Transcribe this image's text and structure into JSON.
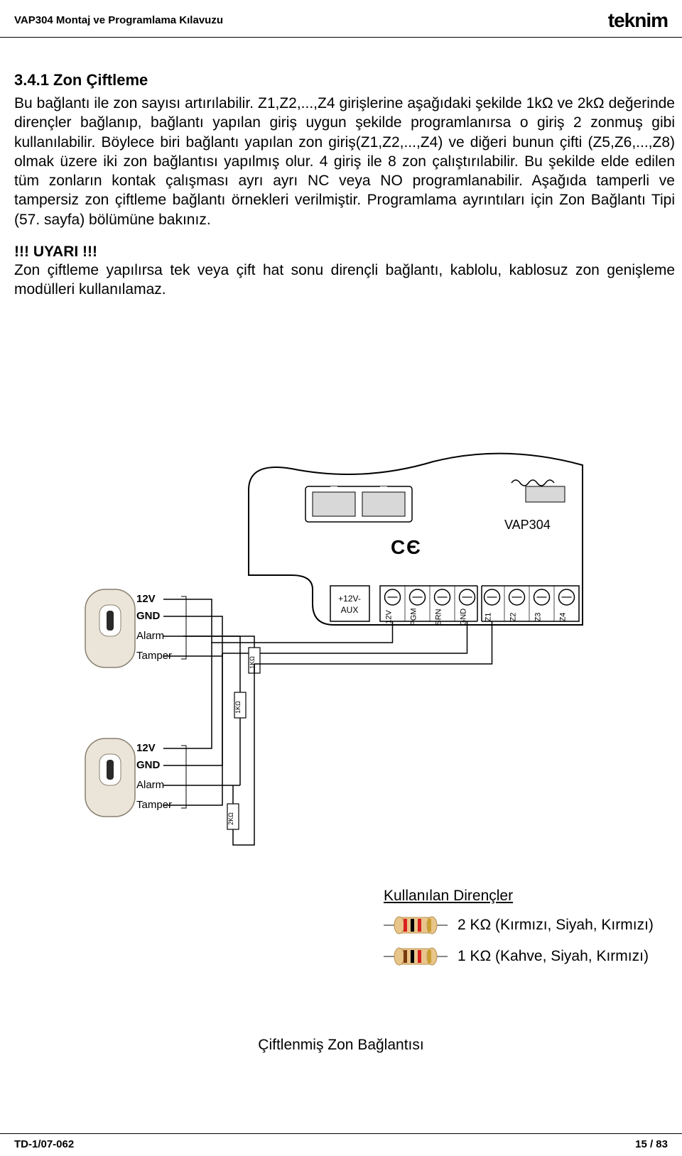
{
  "header": {
    "doc_title": "VAP304 Montaj ve Programlama Kılavuzu",
    "brand": "teknim"
  },
  "section": {
    "title": "3.4.1 Zon Çiftleme",
    "body": "Bu bağlantı ile zon sayısı artırılabilir. Z1,Z2,...,Z4 girişlerine aşağıdaki şekilde 1kΩ ve 2kΩ değerinde dirençler bağlanıp, bağlantı yapılan giriş uygun şekilde programlanırsa o giriş 2 zonmuş gibi kullanılabilir. Böylece biri bağlantı yapılan zon giriş(Z1,Z2,...,Z4) ve diğeri bunun çifti (Z5,Z6,...,Z8) olmak üzere iki zon bağlantısı yapılmış olur. 4 giriş ile 8 zon çalıştırılabilir. Bu şekilde elde edilen tüm zonların kontak çalışması ayrı ayrı NC veya NO programlanabilir. Aşağıda tamperli ve tampersiz zon çiftleme bağlantı örnekleri verilmiştir. Programlama ayrıntıları için Zon Bağlantı Tipi (57. sayfa) bölümüne bakınız.",
    "warning_title": "!!! UYARI !!!",
    "warning_body": "Zon çiftleme yapılırsa tek veya çift hat sonu dirençli bağlantı, kablolu, kablosuz zon genişleme modülleri kullanılamaz."
  },
  "diagram": {
    "board_label": "VAP304",
    "aux_label": "+12V-\nAUX",
    "terminals": [
      "12V",
      "PGM",
      "SRN",
      "GND",
      "Z1",
      "Z2",
      "Z3",
      "Z4"
    ],
    "sensor_labels": [
      "12V",
      "GND",
      "Alarm",
      "Tamper"
    ],
    "resistor_inline": [
      "1KΩ",
      "1KΩ",
      "2KΩ"
    ],
    "colors": {
      "board_outline": "#000000",
      "board_fill": "#ffffff",
      "sensor_fill": "#ebe5d9",
      "sensor_stroke": "#888070",
      "connector_fill": "#e8e8e8",
      "wire": "#000000",
      "screw_fill": "#ffffff",
      "screw_stroke": "#000000",
      "gap_fill": "#d8d8d8"
    }
  },
  "resistors": {
    "title": "Kullanılan Dirençler",
    "items": [
      {
        "label": "2 KΩ (Kırmızı, Siyah, Kırmızı)",
        "bands": [
          "#d82020",
          "#000000",
          "#d82020",
          "#c9a030"
        ],
        "body": "#e8c58a"
      },
      {
        "label": "1 KΩ (Kahve, Siyah, Kırmızı)",
        "bands": [
          "#7a3a10",
          "#000000",
          "#d82020",
          "#c9a030"
        ],
        "body": "#e8c58a"
      }
    ]
  },
  "caption": "Çiftlenmiş Zon Bağlantısı",
  "footer": {
    "left": "TD-1/07-062",
    "right": "15 / 83"
  }
}
